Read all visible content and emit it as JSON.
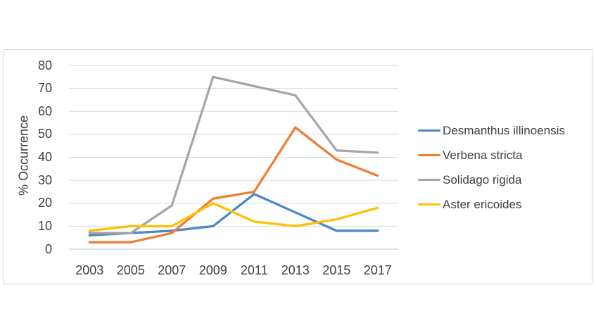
{
  "chart_data": {
    "type": "line",
    "title": "",
    "xlabel": "",
    "ylabel": "% Occurrence",
    "categories": [
      "2003",
      "2005",
      "2007",
      "2009",
      "2011",
      "2013",
      "2015",
      "2017"
    ],
    "series": [
      {
        "name": "Desmanthus illinoensis",
        "color": "#4a86c8",
        "values": [
          6,
          7,
          8,
          10,
          24,
          16,
          8,
          8
        ]
      },
      {
        "name": "Verbena stricta",
        "color": "#ed7d31",
        "values": [
          3,
          3,
          7,
          22,
          25,
          53,
          39,
          32
        ]
      },
      {
        "name": "Solidago rigida",
        "color": "#a5a5a5",
        "values": [
          7,
          7,
          19,
          75,
          71,
          67,
          43,
          42
        ]
      },
      {
        "name": "Aster ericoides",
        "color": "#ffc000",
        "values": [
          8,
          10,
          10,
          20,
          12,
          10,
          13,
          18
        ]
      }
    ],
    "y_ticks": [
      0,
      10,
      20,
      30,
      40,
      50,
      60,
      70,
      80
    ],
    "ylim": [
      0,
      80
    ],
    "grid": true,
    "legend_position": "right"
  },
  "colors": {
    "gridline": "#d9d9d9",
    "axis_line": "#c6c6c6",
    "tick_text": "#3f3f3f",
    "frame_border": "#d6d6d6",
    "background": "#ffffff"
  }
}
